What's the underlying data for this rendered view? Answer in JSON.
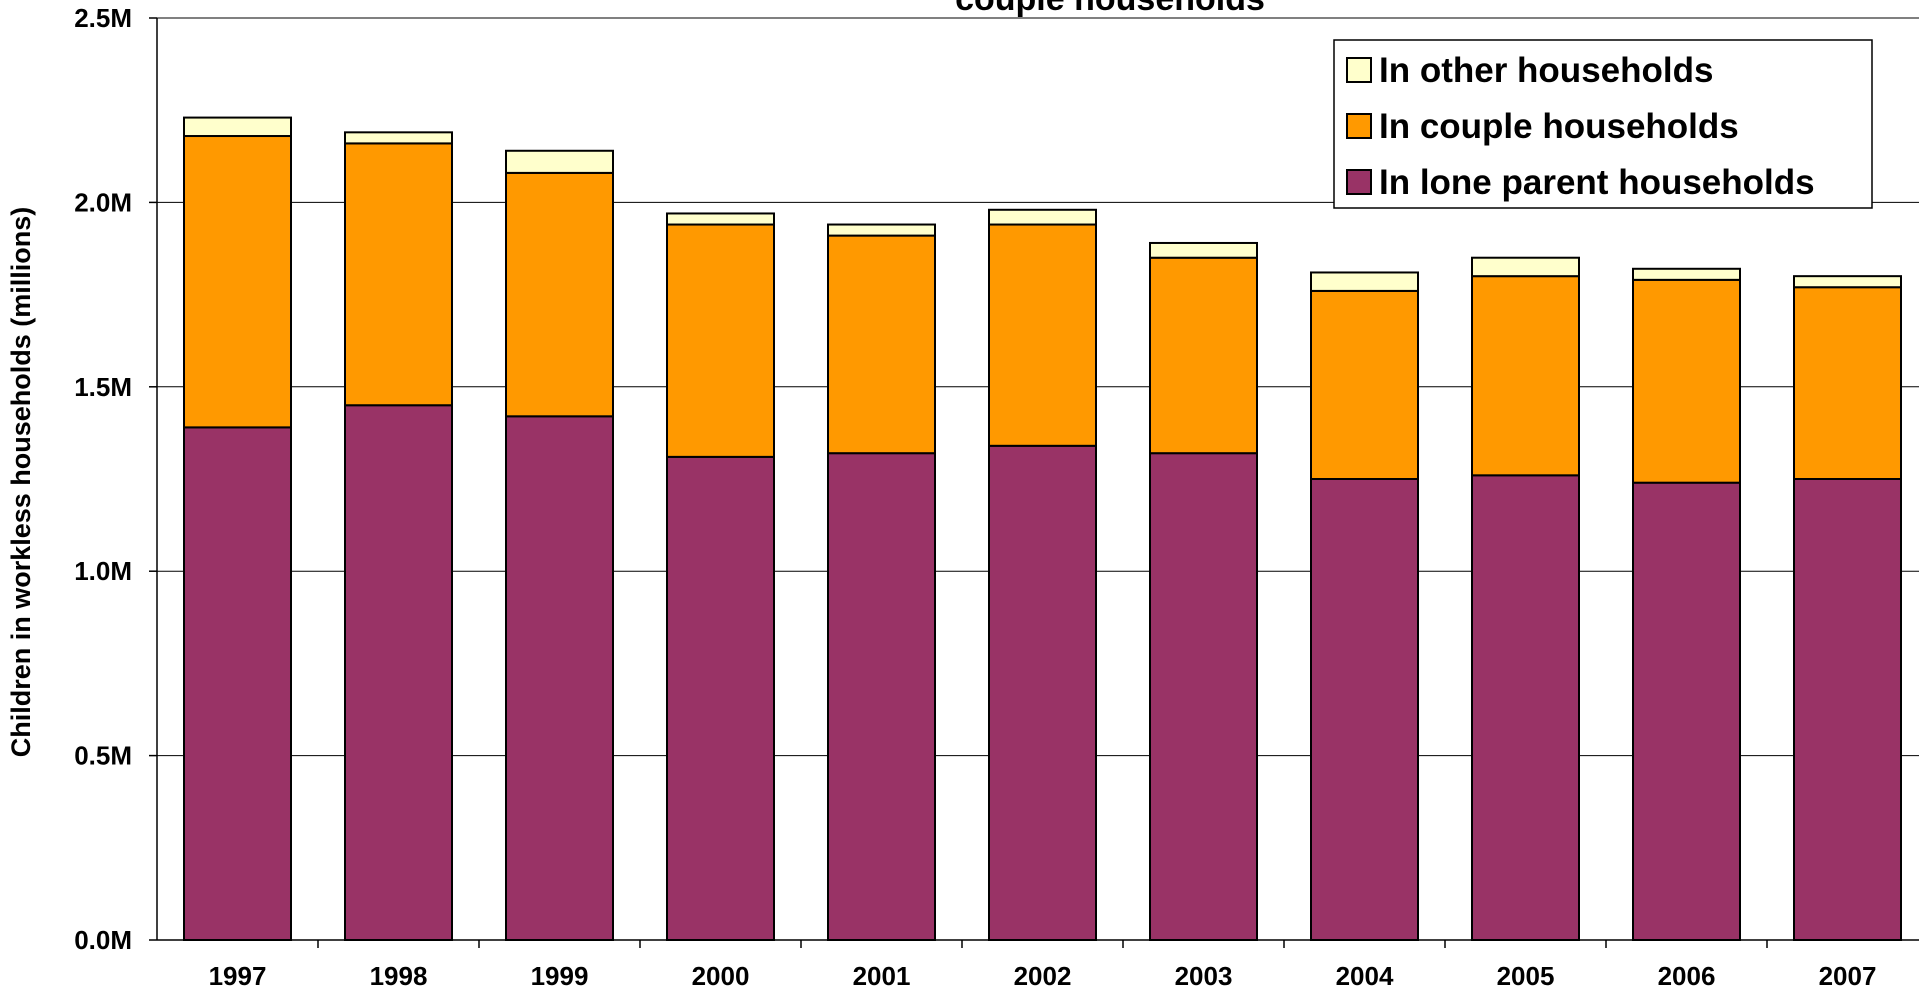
{
  "chart_data": {
    "type": "bar",
    "stacked": true,
    "title": "couple households",
    "ylabel": "Children in workless households (millions)",
    "xlabel": "",
    "categories": [
      "1997",
      "1998",
      "1999",
      "2000",
      "2001",
      "2002",
      "2003",
      "2004",
      "2005",
      "2006",
      "2007"
    ],
    "series": [
      {
        "name": "In lone parent households",
        "color": "#993366",
        "values": [
          1.39,
          1.45,
          1.42,
          1.31,
          1.32,
          1.34,
          1.32,
          1.25,
          1.26,
          1.24,
          1.25
        ]
      },
      {
        "name": "In couple households",
        "color": "#FF9900",
        "values": [
          0.79,
          0.71,
          0.66,
          0.63,
          0.59,
          0.6,
          0.53,
          0.51,
          0.54,
          0.55,
          0.52
        ]
      },
      {
        "name": "In other households",
        "color": "#FFFFCC",
        "values": [
          0.05,
          0.03,
          0.06,
          0.03,
          0.03,
          0.04,
          0.04,
          0.05,
          0.05,
          0.03,
          0.03
        ]
      }
    ],
    "ylim": [
      0,
      2.5
    ],
    "yticks": [
      "0.0M",
      "0.5M",
      "1.0M",
      "1.5M",
      "2.0M",
      "2.5M"
    ],
    "grid": true,
    "legend_position": "top-right"
  }
}
